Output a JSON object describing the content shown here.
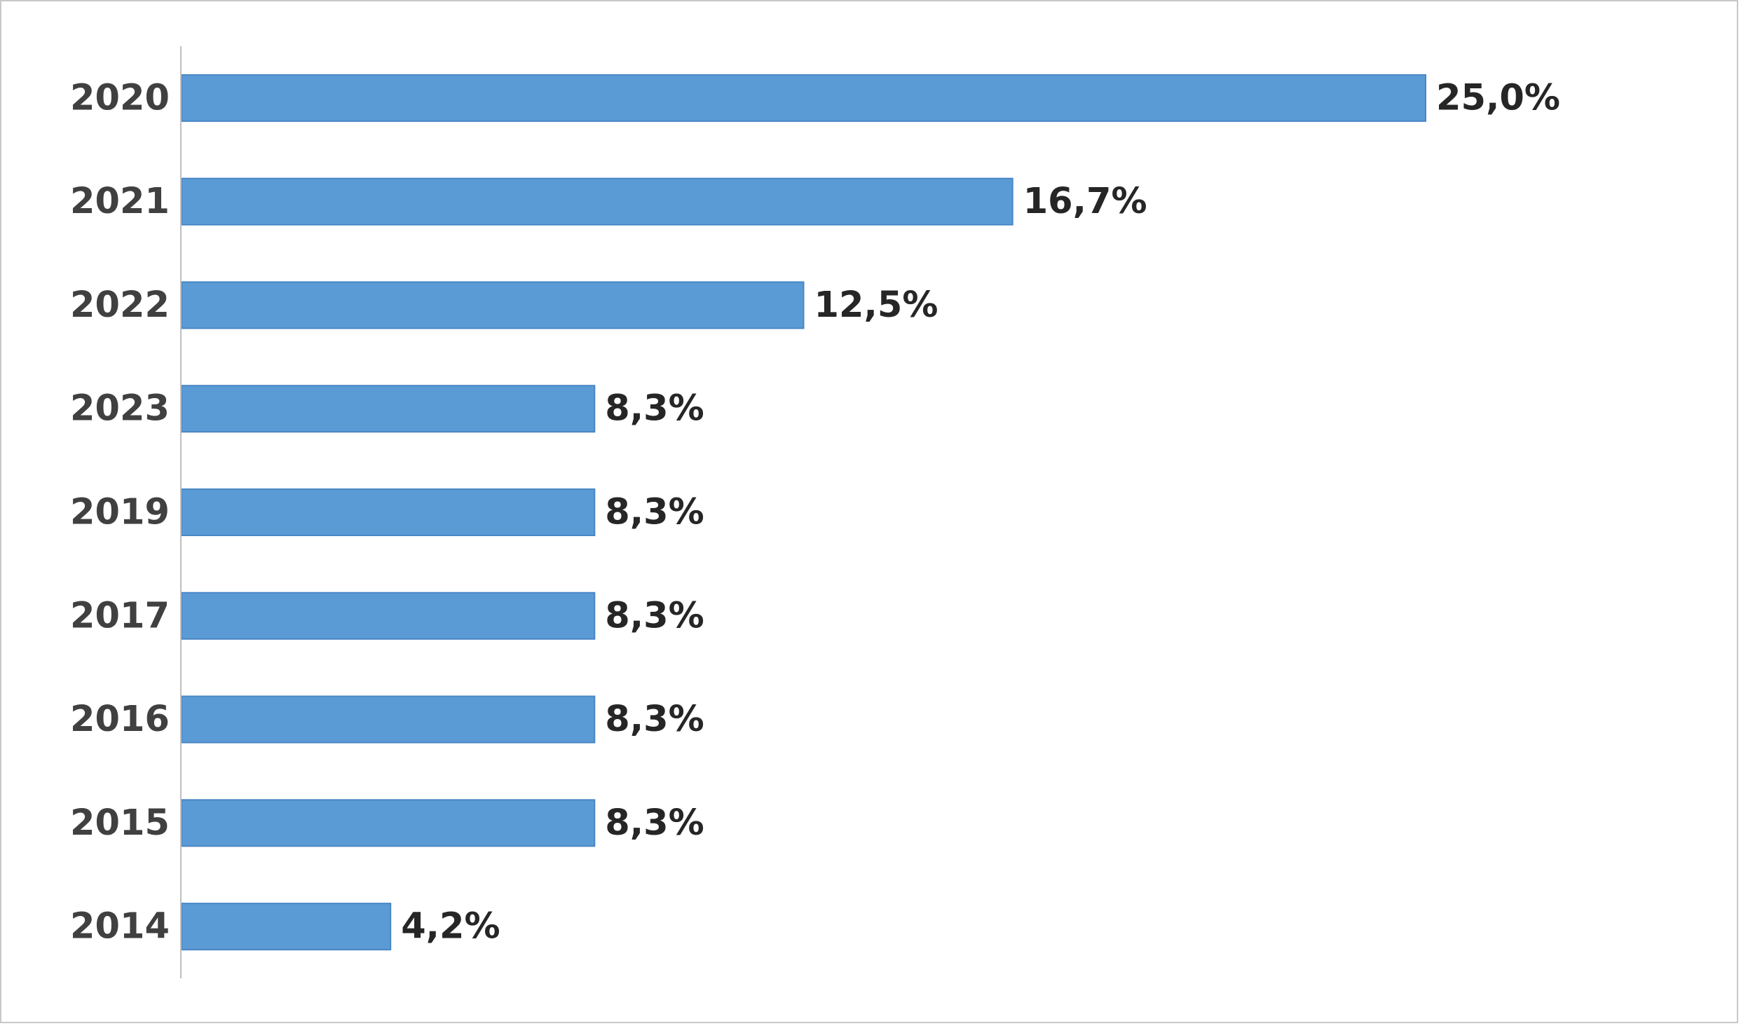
{
  "chart_data": {
    "type": "bar",
    "orientation": "horizontal",
    "categories": [
      "2020",
      "2021",
      "2022",
      "2023",
      "2019",
      "2017",
      "2016",
      "2015",
      "2014"
    ],
    "values": [
      25.0,
      16.7,
      12.5,
      8.3,
      8.3,
      8.3,
      8.3,
      8.3,
      4.2
    ],
    "value_labels": [
      "25,0%",
      "16,7%",
      "12,5%",
      "8,3%",
      "8,3%",
      "8,3%",
      "8,3%",
      "8,3%",
      "4,2%"
    ],
    "unit": "%",
    "title": "",
    "xlabel": "",
    "ylabel": "",
    "xlim": [
      0,
      25
    ],
    "grid": false,
    "legend": "none",
    "bar_color": "#5b9bd5",
    "bar_border_color": "#4a86c5",
    "axis_color": "#bfbfbf"
  }
}
